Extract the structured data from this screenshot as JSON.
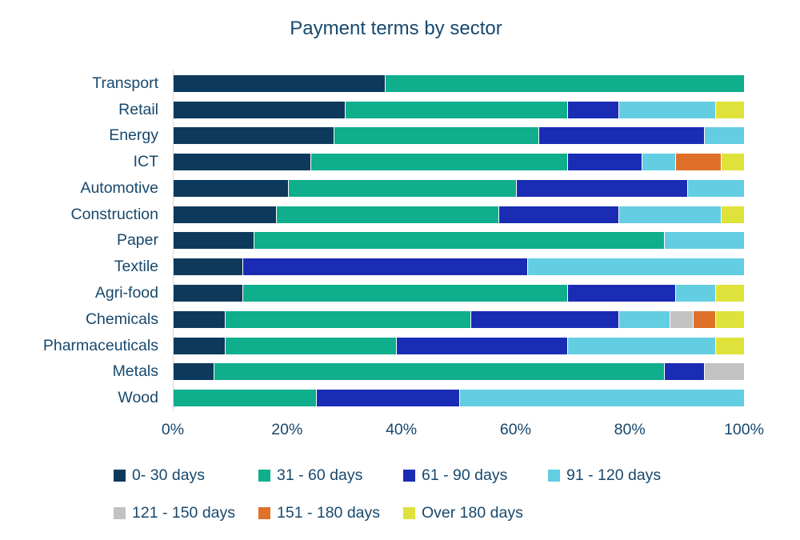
{
  "title": "Payment terms by sector",
  "colors": {
    "text": "#17486D",
    "axis_line": "#D9D9D9",
    "background": "#FFFFFF"
  },
  "chart_data": {
    "type": "bar",
    "stacked": true,
    "orientation": "horizontal",
    "title": "Payment terms by sector",
    "xlabel": "",
    "ylabel": "",
    "xlim": [
      0,
      100
    ],
    "x_ticks": [
      "0%",
      "20%",
      "40%",
      "60%",
      "80%",
      "100%"
    ],
    "x_tick_values": [
      0,
      20,
      40,
      60,
      80,
      100
    ],
    "grid": false,
    "legend_position": "bottom",
    "values_unit": "percent",
    "categories": [
      "Transport",
      "Retail",
      "Energy",
      "ICT",
      "Automotive",
      "Construction",
      "Paper",
      "Textile",
      "Agri-food",
      "Chemicals",
      "Pharmaceuticals",
      "Metals",
      "Wood"
    ],
    "series": [
      {
        "name": "0- 30 days",
        "color": "#0D3A5C",
        "values": [
          37,
          30,
          28,
          24,
          20,
          18,
          14,
          12,
          12,
          9,
          9,
          7,
          0
        ]
      },
      {
        "name": "31 - 60 days",
        "color": "#0FAE8C",
        "values": [
          63,
          39,
          36,
          45,
          40,
          39,
          72,
          0,
          57,
          43,
          30,
          79,
          25
        ]
      },
      {
        "name": "61 - 90 days",
        "color": "#1B2CB4",
        "values": [
          0,
          9,
          29,
          13,
          30,
          21,
          0,
          50,
          19,
          26,
          30,
          7,
          25
        ]
      },
      {
        "name": "91 - 120 days",
        "color": "#63CDE2",
        "values": [
          0,
          17,
          7,
          6,
          10,
          18,
          14,
          38,
          7,
          9,
          26,
          0,
          50
        ]
      },
      {
        "name": "121 - 150 days",
        "color": "#C2C2C2",
        "values": [
          0,
          0,
          0,
          0,
          0,
          0,
          0,
          0,
          0,
          4,
          0,
          7,
          0
        ]
      },
      {
        "name": "151 - 180 days",
        "color": "#DE7029",
        "values": [
          0,
          0,
          0,
          8,
          0,
          0,
          0,
          0,
          0,
          4,
          0,
          0,
          0
        ]
      },
      {
        "name": "Over 180 days",
        "color": "#DFE23A",
        "values": [
          0,
          5,
          0,
          4,
          0,
          4,
          0,
          0,
          5,
          5,
          5,
          0,
          0
        ]
      }
    ]
  }
}
